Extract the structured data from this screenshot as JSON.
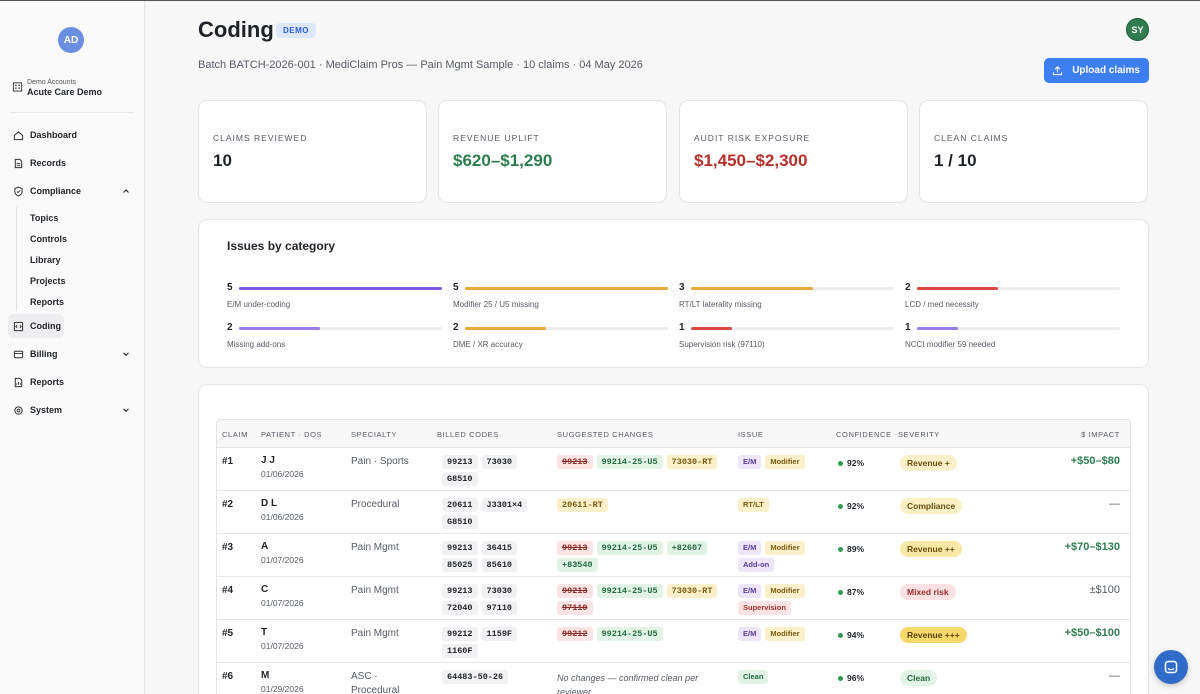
{
  "sidebar": {
    "avatar": "AD",
    "account_small": "Demo Accounts",
    "account_big": "Acute Care Demo",
    "items": [
      {
        "label": "Dashboard",
        "icon": "home-icon"
      },
      {
        "label": "Records",
        "icon": "document-icon"
      },
      {
        "label": "Compliance",
        "icon": "shield-icon"
      },
      {
        "label": "Coding",
        "icon": "coding-icon"
      },
      {
        "label": "Billing",
        "icon": "wallet-icon"
      },
      {
        "label": "Reports",
        "icon": "report-icon"
      },
      {
        "label": "System",
        "icon": "gear-icon"
      }
    ],
    "compliance_sub": [
      "Topics",
      "Controls",
      "Library",
      "Projects",
      "Reports"
    ]
  },
  "header": {
    "title": "Coding",
    "badge": "DEMO",
    "subtitle": "Batch BATCH-2026-001 · MediClaim Pros — Pain Mgmt Sample · 10 claims · 04 May 2026",
    "user_initials": "SY",
    "upload_label": "Upload claims"
  },
  "stats": [
    {
      "label": "CLAIMS REVIEWED",
      "value": "10",
      "tone": "default"
    },
    {
      "label": "REVENUE UPLIFT",
      "value": "$620–$1,290",
      "tone": "green"
    },
    {
      "label": "AUDIT RISK EXPOSURE",
      "value": "$1,450–$2,300",
      "tone": "red"
    },
    {
      "label": "CLEAN CLAIMS",
      "value": "1 / 10",
      "tone": "default"
    }
  ],
  "issues": {
    "title": "Issues by category",
    "max": 5,
    "items": [
      {
        "count": 5,
        "label": "E/M under-coding",
        "color": "#7b5be0"
      },
      {
        "count": 5,
        "label": "Modifier 25 / U5 missing",
        "color": "#e8a93b"
      },
      {
        "count": 3,
        "label": "RT/LT laterality missing",
        "color": "#e8a93b"
      },
      {
        "count": 2,
        "label": "LCD / med necessity",
        "color": "#d94a45"
      },
      {
        "count": 2,
        "label": "Missing add-ons",
        "color": "#9b7fe6"
      },
      {
        "count": 2,
        "label": "DME / XR accuracy",
        "color": "#e8a93b"
      },
      {
        "count": 1,
        "label": "Supervision risk (97110)",
        "color": "#d94a45"
      },
      {
        "count": 1,
        "label": "NCCI modifier 59 needed",
        "color": "#9b7fe6"
      }
    ]
  },
  "table": {
    "headers": [
      "CLAIM",
      "PATIENT · DOS",
      "SPECIALTY",
      "BILLED CODES",
      "SUGGESTED CHANGES",
      "ISSUE",
      "CONFIDENCE",
      "SEVERITY",
      "$ IMPACT"
    ],
    "rows": [
      {
        "claim": "#1",
        "patient": "J J",
        "dos": "01/06/2026",
        "specialty": "Pain · Sports",
        "billed": [
          "99213",
          "73030",
          "G8510"
        ],
        "suggested": [
          {
            "t": "99213",
            "k": "struck"
          },
          {
            "t": "99214-25-U5",
            "k": "add"
          },
          {
            "t": "73030-RT",
            "k": "mod"
          }
        ],
        "issues": [
          {
            "t": "E/M",
            "k": "em"
          },
          {
            "t": "Modifier",
            "k": "mod"
          }
        ],
        "confidence": "92%",
        "severity": "Revenue +",
        "sev_k": "rev",
        "impact": "+$50–$80",
        "impact_k": "pos"
      },
      {
        "claim": "#2",
        "patient": "D L",
        "dos": "01/06/2026",
        "specialty": "Procedural",
        "billed": [
          "20611",
          "J3301×4",
          "G8510"
        ],
        "suggested": [
          {
            "t": "20611-RT",
            "k": "mod"
          }
        ],
        "issues": [
          {
            "t": "RT/LT",
            "k": "mod"
          }
        ],
        "confidence": "92%",
        "severity": "Compliance",
        "sev_k": "comp",
        "impact": "—",
        "impact_k": "neutral"
      },
      {
        "claim": "#3",
        "patient": "A",
        "dos": "01/07/2026",
        "specialty": "Pain Mgmt",
        "billed": [
          "99213",
          "36415",
          "85025",
          "85610"
        ],
        "suggested": [
          {
            "t": "99213",
            "k": "struck"
          },
          {
            "t": "99214-25-U5",
            "k": "add"
          },
          {
            "t": "+82607",
            "k": "add"
          },
          {
            "t": "+83540",
            "k": "add"
          }
        ],
        "issues": [
          {
            "t": "E/M",
            "k": "em"
          },
          {
            "t": "Modifier",
            "k": "mod"
          },
          {
            "t": "Add-on",
            "k": "addon"
          }
        ],
        "confidence": "89%",
        "severity": "Revenue ++",
        "sev_k": "rev2",
        "impact": "+$70–$130",
        "impact_k": "pos"
      },
      {
        "claim": "#4",
        "patient": "C",
        "dos": "01/07/2026",
        "specialty": "Pain Mgmt",
        "billed": [
          "99213",
          "73030",
          "72040",
          "97110"
        ],
        "suggested": [
          {
            "t": "99213",
            "k": "struck"
          },
          {
            "t": "99214-25-U5",
            "k": "add"
          },
          {
            "t": "73030-RT",
            "k": "mod"
          },
          {
            "t": "97110",
            "k": "struck"
          }
        ],
        "issues": [
          {
            "t": "E/M",
            "k": "em"
          },
          {
            "t": "Modifier",
            "k": "mod"
          },
          {
            "t": "Supervision",
            "k": "sup"
          }
        ],
        "confidence": "87%",
        "severity": "Mixed risk",
        "sev_k": "mixed",
        "impact": "±$100",
        "impact_k": "neutral"
      },
      {
        "claim": "#5",
        "patient": "T",
        "dos": "01/07/2026",
        "specialty": "Pain Mgmt",
        "billed": [
          "99212",
          "1159F",
          "1160F"
        ],
        "suggested": [
          {
            "t": "99212",
            "k": "struck"
          },
          {
            "t": "99214-25-U5",
            "k": "add"
          }
        ],
        "issues": [
          {
            "t": "E/M",
            "k": "em"
          },
          {
            "t": "Modifier",
            "k": "mod"
          }
        ],
        "confidence": "94%",
        "severity": "Revenue +++",
        "sev_k": "rev3",
        "impact": "+$50–$100",
        "impact_k": "pos"
      },
      {
        "claim": "#6",
        "patient": "M",
        "dos": "01/29/2026",
        "specialty": "ASC · Procedural",
        "billed": [
          "64483-50-26"
        ],
        "suggested": [],
        "no_change": "No changes — confirmed clean per reviewer",
        "issues": [
          {
            "t": "Clean",
            "k": "clean"
          }
        ],
        "confidence": "96%",
        "severity": "Clean",
        "sev_k": "clean",
        "impact": "—",
        "impact_k": "neutral"
      }
    ]
  }
}
